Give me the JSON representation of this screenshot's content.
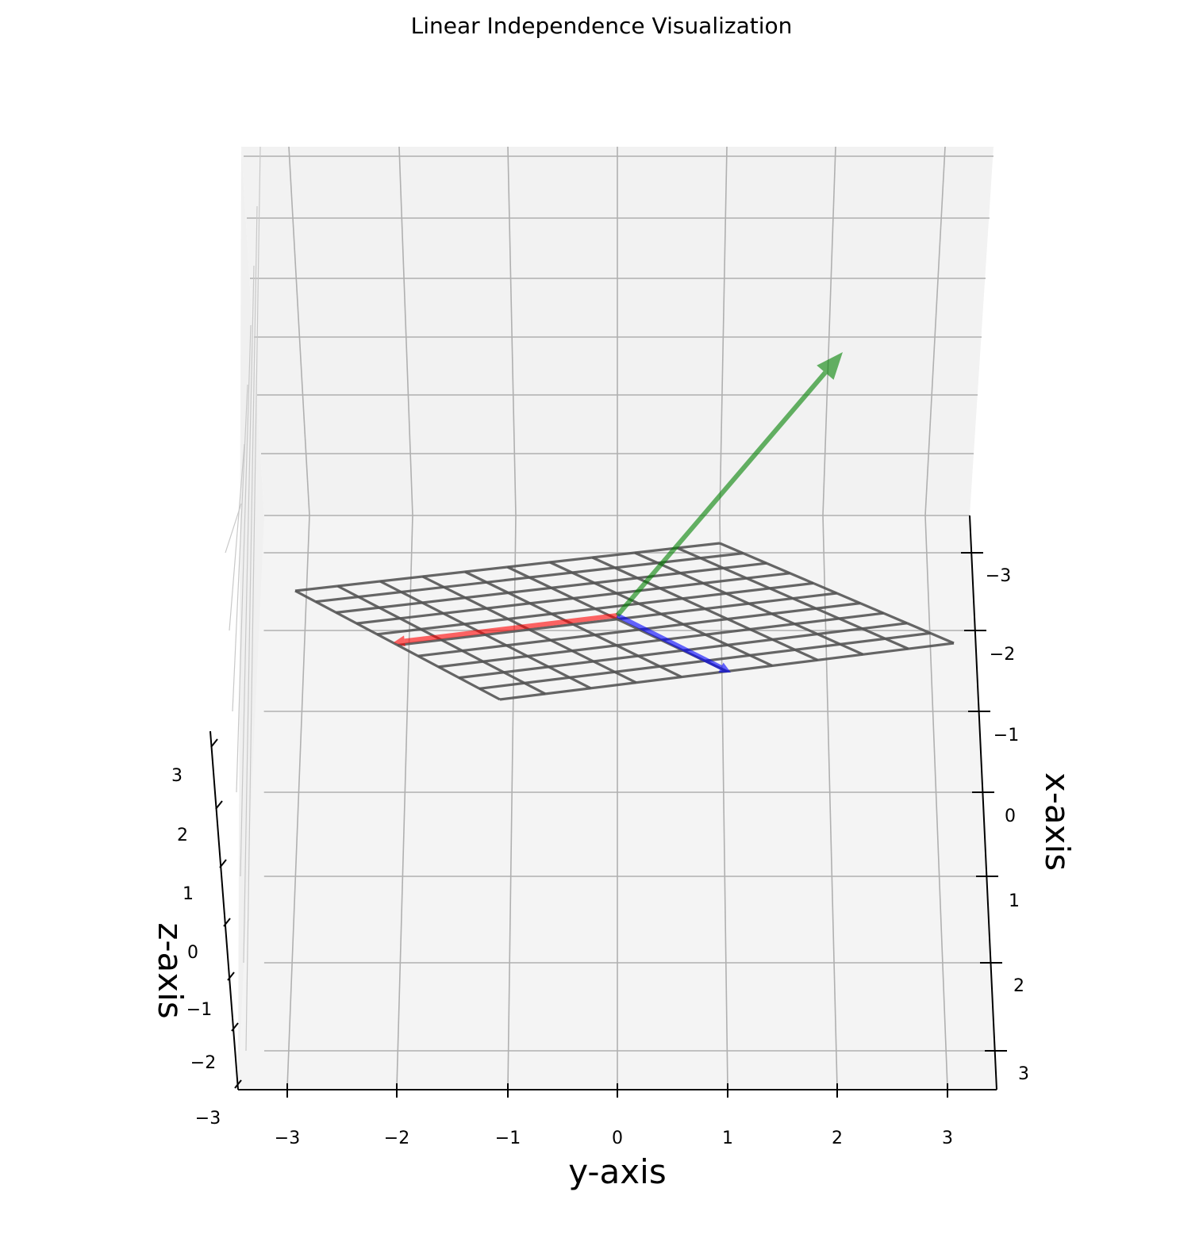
{
  "chart_data": {
    "type": "3d-vector",
    "title": "Linear Independence Visualization",
    "xlabel": "x-axis",
    "ylabel": "y-axis",
    "zlabel": "z-axis",
    "xlim": [
      -3,
      3
    ],
    "ylim": [
      -3,
      3
    ],
    "zlim": [
      -3,
      3
    ],
    "x_ticks": [
      "−3",
      "−2",
      "−1",
      "0",
      "1",
      "2",
      "3"
    ],
    "y_ticks": [
      "−3",
      "−2",
      "−1",
      "0",
      "1",
      "2",
      "3"
    ],
    "z_ticks": [
      "−3",
      "−2",
      "−1",
      "0",
      "1",
      "2",
      "3"
    ],
    "grid": true,
    "vectors": [
      {
        "color": "#ff0000",
        "origin": [
          0,
          0,
          0
        ],
        "components": [
          1,
          -2,
          0
        ]
      },
      {
        "color": "#0000ff",
        "origin": [
          0,
          0,
          0
        ],
        "components": [
          0.5,
          1,
          0
        ]
      },
      {
        "color": "#008000",
        "origin": [
          0,
          0,
          0
        ],
        "components": [
          -1,
          2,
          3
        ]
      }
    ],
    "plane": {
      "z": 0,
      "color": "#000000",
      "grid_lines": 10
    }
  }
}
